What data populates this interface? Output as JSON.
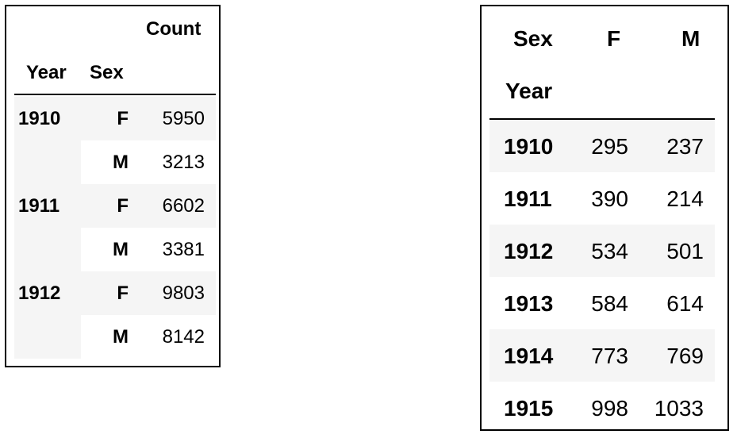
{
  "multi_index_table": {
    "header": {
      "count_label": "Count",
      "year_label": "Year",
      "sex_label": "Sex"
    },
    "groups": [
      {
        "year": "1910",
        "rows": [
          {
            "sex": "F",
            "count": "5950"
          },
          {
            "sex": "M",
            "count": "3213"
          }
        ]
      },
      {
        "year": "1911",
        "rows": [
          {
            "sex": "F",
            "count": "6602"
          },
          {
            "sex": "M",
            "count": "3381"
          }
        ]
      },
      {
        "year": "1912",
        "rows": [
          {
            "sex": "F",
            "count": "9803"
          },
          {
            "sex": "M",
            "count": "8142"
          }
        ]
      }
    ]
  },
  "pivot_table": {
    "header": {
      "columns_name": "Sex",
      "col_f": "F",
      "col_m": "M",
      "index_name": "Year"
    },
    "rows": [
      {
        "year": "1910",
        "f": "295",
        "m": "237"
      },
      {
        "year": "1911",
        "f": "390",
        "m": "214"
      },
      {
        "year": "1912",
        "f": "534",
        "m": "501"
      },
      {
        "year": "1913",
        "f": "584",
        "m": "614"
      },
      {
        "year": "1914",
        "f": "773",
        "m": "769"
      },
      {
        "year": "1915",
        "f": "998",
        "m": "1033"
      }
    ]
  },
  "colors": {
    "row_shade": "#f5f5f5",
    "border": "#000000"
  }
}
